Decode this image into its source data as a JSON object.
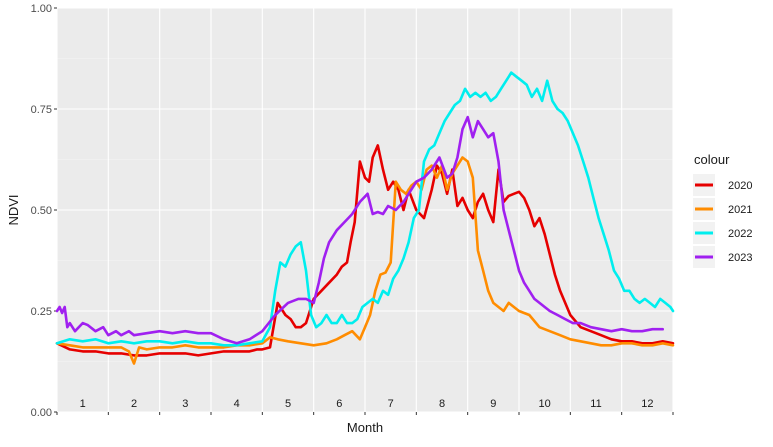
{
  "chart_data": {
    "type": "line",
    "xlabel": "Month",
    "ylabel": "NDVI",
    "ylim": [
      0,
      1
    ],
    "xlim": [
      0,
      12
    ],
    "y_ticks": [
      "0.00",
      "0.25",
      "0.50",
      "0.75",
      "1.00"
    ],
    "y_tick_values": [
      0,
      0.25,
      0.5,
      0.75,
      1.0
    ],
    "month_labels": [
      "1",
      "2",
      "3",
      "4",
      "5",
      "6",
      "7",
      "8",
      "9",
      "10",
      "11",
      "12"
    ],
    "grid": true,
    "legend_position": "right",
    "legend_title": "colour",
    "background": "#ebebeb",
    "series": [
      {
        "name": "2020",
        "color": "#e60000",
        "x": [
          0,
          0.25,
          0.5,
          0.75,
          1.0,
          1.25,
          1.5,
          1.75,
          2.0,
          2.25,
          2.5,
          2.75,
          3.0,
          3.25,
          3.5,
          3.75,
          3.9,
          4.0,
          4.15,
          4.3,
          4.45,
          4.55,
          4.65,
          4.75,
          4.85,
          5.0,
          5.15,
          5.3,
          5.45,
          5.55,
          5.65,
          5.72,
          5.8,
          5.9,
          6.0,
          6.08,
          6.15,
          6.25,
          6.35,
          6.45,
          6.55,
          6.65,
          6.75,
          6.85,
          7.0,
          7.15,
          7.3,
          7.4,
          7.5,
          7.6,
          7.7,
          7.8,
          7.9,
          8.0,
          8.1,
          8.2,
          8.3,
          8.4,
          8.5,
          8.6,
          8.7,
          8.8,
          8.9,
          9.0,
          9.1,
          9.2,
          9.3,
          9.4,
          9.5,
          9.6,
          9.7,
          9.8,
          9.9,
          10.0,
          10.2,
          10.4,
          10.6,
          10.8,
          11.0,
          11.2,
          11.4,
          11.6,
          11.8,
          12.0
        ],
        "values": [
          0.17,
          0.155,
          0.15,
          0.15,
          0.145,
          0.145,
          0.14,
          0.14,
          0.145,
          0.145,
          0.145,
          0.14,
          0.145,
          0.15,
          0.15,
          0.15,
          0.155,
          0.155,
          0.16,
          0.27,
          0.24,
          0.23,
          0.21,
          0.21,
          0.22,
          0.28,
          0.3,
          0.32,
          0.34,
          0.36,
          0.37,
          0.42,
          0.47,
          0.62,
          0.58,
          0.57,
          0.63,
          0.66,
          0.6,
          0.55,
          0.57,
          0.55,
          0.5,
          0.55,
          0.5,
          0.48,
          0.55,
          0.61,
          0.59,
          0.54,
          0.6,
          0.51,
          0.53,
          0.5,
          0.48,
          0.52,
          0.54,
          0.5,
          0.47,
          0.6,
          0.52,
          0.535,
          0.54,
          0.545,
          0.53,
          0.5,
          0.46,
          0.48,
          0.44,
          0.39,
          0.34,
          0.3,
          0.27,
          0.24,
          0.21,
          0.2,
          0.19,
          0.18,
          0.175,
          0.175,
          0.17,
          0.17,
          0.175,
          0.17
        ]
      },
      {
        "name": "2021",
        "color": "#ff8c00",
        "x": [
          0,
          0.25,
          0.5,
          0.75,
          1.0,
          1.25,
          1.4,
          1.5,
          1.6,
          1.75,
          2.0,
          2.25,
          2.5,
          2.75,
          3.0,
          3.25,
          3.5,
          3.75,
          4.0,
          4.15,
          4.3,
          4.5,
          4.75,
          5.0,
          5.25,
          5.35,
          5.45,
          5.6,
          5.75,
          5.9,
          6.0,
          6.1,
          6.2,
          6.3,
          6.4,
          6.5,
          6.6,
          6.7,
          6.8,
          6.9,
          7.0,
          7.1,
          7.2,
          7.3,
          7.4,
          7.5,
          7.6,
          7.7,
          7.8,
          7.9,
          8.0,
          8.1,
          8.2,
          8.3,
          8.4,
          8.5,
          8.6,
          8.7,
          8.8,
          8.9,
          9.0,
          9.2,
          9.4,
          9.6,
          9.8,
          10.0,
          10.2,
          10.4,
          10.6,
          10.8,
          11.0,
          11.2,
          11.4,
          11.6,
          11.8,
          12.0
        ],
        "values": [
          0.17,
          0.165,
          0.16,
          0.16,
          0.16,
          0.16,
          0.15,
          0.12,
          0.16,
          0.155,
          0.16,
          0.16,
          0.165,
          0.16,
          0.16,
          0.16,
          0.165,
          0.165,
          0.17,
          0.185,
          0.18,
          0.175,
          0.17,
          0.165,
          0.17,
          0.175,
          0.18,
          0.19,
          0.2,
          0.18,
          0.21,
          0.24,
          0.3,
          0.34,
          0.345,
          0.37,
          0.57,
          0.55,
          0.54,
          0.56,
          0.57,
          0.55,
          0.6,
          0.61,
          0.58,
          0.61,
          0.55,
          0.59,
          0.61,
          0.63,
          0.62,
          0.58,
          0.4,
          0.35,
          0.3,
          0.27,
          0.26,
          0.25,
          0.27,
          0.26,
          0.25,
          0.24,
          0.21,
          0.2,
          0.19,
          0.18,
          0.175,
          0.17,
          0.165,
          0.165,
          0.17,
          0.17,
          0.165,
          0.165,
          0.17,
          0.165
        ]
      },
      {
        "name": "2022",
        "color": "#00eeee",
        "x": [
          0,
          0.25,
          0.5,
          0.75,
          1.0,
          1.25,
          1.5,
          1.75,
          2.0,
          2.25,
          2.5,
          2.75,
          3.0,
          3.25,
          3.5,
          3.75,
          4.0,
          4.15,
          4.25,
          4.35,
          4.45,
          4.55,
          4.65,
          4.75,
          4.85,
          4.95,
          5.05,
          5.15,
          5.25,
          5.35,
          5.45,
          5.55,
          5.65,
          5.75,
          5.85,
          5.95,
          6.05,
          6.15,
          6.25,
          6.35,
          6.45,
          6.55,
          6.65,
          6.75,
          6.85,
          6.95,
          7.05,
          7.15,
          7.25,
          7.35,
          7.45,
          7.55,
          7.65,
          7.75,
          7.85,
          7.95,
          8.05,
          8.15,
          8.25,
          8.35,
          8.45,
          8.55,
          8.65,
          8.75,
          8.85,
          8.95,
          9.05,
          9.15,
          9.25,
          9.35,
          9.45,
          9.55,
          9.65,
          9.75,
          9.85,
          9.95,
          10.05,
          10.15,
          10.25,
          10.35,
          10.45,
          10.55,
          10.65,
          10.75,
          10.85,
          10.95,
          11.05,
          11.15,
          11.25,
          11.35,
          11.45,
          11.55,
          11.65,
          11.75,
          11.85,
          11.95,
          12.0
        ],
        "values": [
          0.17,
          0.18,
          0.175,
          0.18,
          0.17,
          0.175,
          0.17,
          0.175,
          0.175,
          0.17,
          0.175,
          0.17,
          0.17,
          0.165,
          0.165,
          0.17,
          0.175,
          0.21,
          0.3,
          0.37,
          0.36,
          0.39,
          0.41,
          0.42,
          0.35,
          0.24,
          0.21,
          0.22,
          0.24,
          0.22,
          0.22,
          0.24,
          0.22,
          0.22,
          0.23,
          0.26,
          0.27,
          0.28,
          0.27,
          0.3,
          0.29,
          0.33,
          0.35,
          0.38,
          0.42,
          0.48,
          0.5,
          0.62,
          0.65,
          0.66,
          0.69,
          0.72,
          0.74,
          0.76,
          0.77,
          0.8,
          0.78,
          0.79,
          0.78,
          0.79,
          0.77,
          0.78,
          0.8,
          0.82,
          0.84,
          0.83,
          0.82,
          0.81,
          0.78,
          0.8,
          0.77,
          0.82,
          0.77,
          0.75,
          0.74,
          0.72,
          0.69,
          0.66,
          0.62,
          0.58,
          0.53,
          0.48,
          0.44,
          0.4,
          0.35,
          0.33,
          0.3,
          0.3,
          0.28,
          0.27,
          0.28,
          0.27,
          0.26,
          0.28,
          0.27,
          0.26,
          0.25
        ]
      },
      {
        "name": "2023",
        "color": "#a020f0",
        "x": [
          0,
          0.05,
          0.1,
          0.15,
          0.2,
          0.25,
          0.35,
          0.5,
          0.6,
          0.75,
          0.9,
          1.0,
          1.15,
          1.25,
          1.4,
          1.5,
          1.75,
          2.0,
          2.25,
          2.5,
          2.75,
          3.0,
          3.25,
          3.5,
          3.75,
          4.0,
          4.25,
          4.5,
          4.7,
          4.85,
          5.0,
          5.1,
          5.2,
          5.3,
          5.45,
          5.6,
          5.75,
          5.9,
          6.05,
          6.15,
          6.25,
          6.35,
          6.45,
          6.6,
          6.75,
          6.9,
          7.0,
          7.15,
          7.3,
          7.45,
          7.6,
          7.7,
          7.8,
          7.9,
          8.0,
          8.1,
          8.2,
          8.3,
          8.4,
          8.5,
          8.6,
          8.7,
          8.8,
          8.9,
          9.0,
          9.1,
          9.2,
          9.3,
          9.4,
          9.5,
          9.6,
          9.75,
          9.9,
          10.05,
          10.2,
          10.4,
          10.6,
          10.8,
          11.0,
          11.2,
          11.4,
          11.6,
          11.8
        ],
        "values": [
          0.25,
          0.26,
          0.245,
          0.26,
          0.21,
          0.22,
          0.2,
          0.22,
          0.215,
          0.2,
          0.21,
          0.19,
          0.2,
          0.19,
          0.2,
          0.19,
          0.195,
          0.2,
          0.195,
          0.2,
          0.195,
          0.195,
          0.18,
          0.17,
          0.18,
          0.2,
          0.24,
          0.27,
          0.28,
          0.28,
          0.27,
          0.32,
          0.38,
          0.42,
          0.45,
          0.47,
          0.49,
          0.52,
          0.54,
          0.49,
          0.495,
          0.49,
          0.51,
          0.5,
          0.52,
          0.55,
          0.57,
          0.58,
          0.6,
          0.63,
          0.58,
          0.59,
          0.63,
          0.7,
          0.73,
          0.68,
          0.72,
          0.7,
          0.68,
          0.69,
          0.62,
          0.5,
          0.45,
          0.4,
          0.35,
          0.32,
          0.3,
          0.28,
          0.27,
          0.26,
          0.25,
          0.24,
          0.23,
          0.22,
          0.22,
          0.21,
          0.205,
          0.2,
          0.205,
          0.2,
          0.2,
          0.205,
          0.205
        ]
      }
    ]
  }
}
